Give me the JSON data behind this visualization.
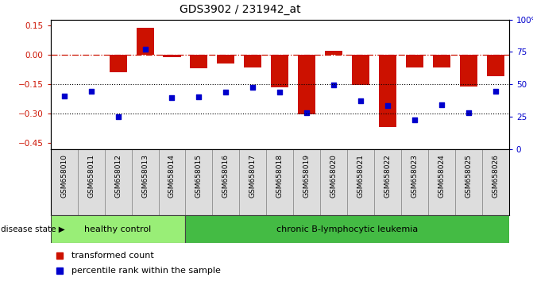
{
  "title": "GDS3902 / 231942_at",
  "samples": [
    "GSM658010",
    "GSM658011",
    "GSM658012",
    "GSM658013",
    "GSM658014",
    "GSM658015",
    "GSM658016",
    "GSM658017",
    "GSM658018",
    "GSM658019",
    "GSM658020",
    "GSM658021",
    "GSM658022",
    "GSM658023",
    "GSM658024",
    "GSM658025",
    "GSM658026"
  ],
  "bar_values": [
    0.0,
    0.0,
    -0.09,
    0.14,
    -0.01,
    -0.07,
    -0.045,
    -0.065,
    -0.165,
    -0.305,
    0.02,
    -0.155,
    -0.37,
    -0.065,
    -0.065,
    -0.16,
    -0.11
  ],
  "blue_values": [
    -0.21,
    -0.185,
    -0.315,
    0.03,
    -0.22,
    -0.215,
    -0.19,
    -0.165,
    -0.19,
    -0.295,
    -0.155,
    -0.235,
    -0.26,
    -0.33,
    -0.255,
    -0.295,
    -0.185
  ],
  "ylim_left": [
    -0.48,
    0.18
  ],
  "ylim_right": [
    0,
    100
  ],
  "yticks_left": [
    0.15,
    0.0,
    -0.15,
    -0.3,
    -0.45
  ],
  "yticks_right": [
    100,
    75,
    50,
    25,
    0
  ],
  "hline_y": 0.0,
  "dotted_lines": [
    -0.15,
    -0.3
  ],
  "healthy_count": 5,
  "group1_label": "healthy control",
  "group2_label": "chronic B-lymphocytic leukemia",
  "disease_state_label": "disease state",
  "legend_bar": "transformed count",
  "legend_blue": "percentile rank within the sample",
  "bar_color": "#CC1100",
  "blue_color": "#0000CC",
  "hline_color": "#CC1100",
  "bg_color": "#FFFFFF",
  "group1_color": "#99EE77",
  "group2_color": "#44BB44",
  "tick_label_color_left": "#CC1100",
  "tick_label_color_right": "#0000CC"
}
